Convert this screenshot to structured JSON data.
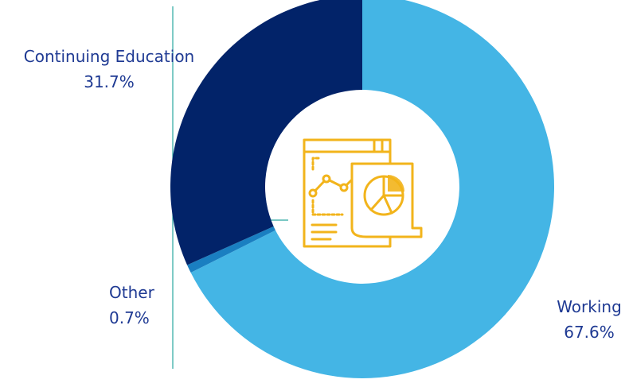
{
  "chart_data": {
    "type": "pie",
    "variant": "donut",
    "slices": [
      {
        "label": "Working",
        "value": 67.6,
        "value_label": "67.6%",
        "color": "#44b5e5"
      },
      {
        "label": "Other",
        "value": 0.7,
        "value_label": "0.7%",
        "color": "#1a7fc1"
      },
      {
        "label": "Continuing Education",
        "value": 31.7,
        "value_label": "31.7%",
        "color": "#022369"
      }
    ],
    "center_icon": "report-charts-icon",
    "icon_color": "#f2b41b",
    "divider_color": "#2aa6a0"
  }
}
